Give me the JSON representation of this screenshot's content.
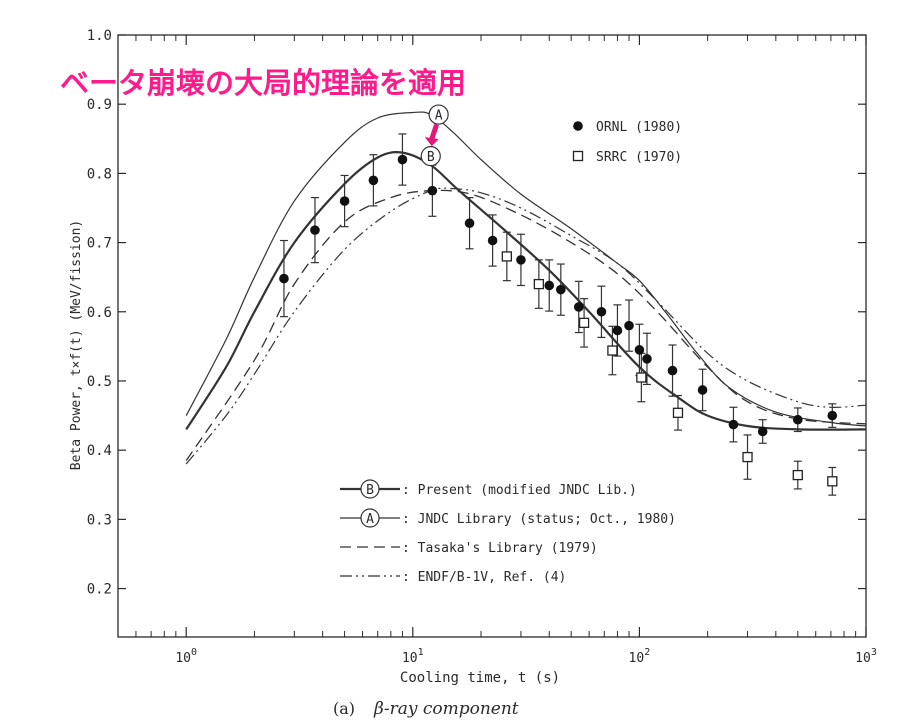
{
  "chart_data": {
    "type": "line",
    "annotation": "ベータ崩壊の大局的理論を適用",
    "ylabel": "Beta Power, t×f(t)  (MeV/fission)",
    "xlabel": "Cooling time, t (s)",
    "caption_label": "(a)",
    "caption_text": "β-ray component",
    "xscale": "log",
    "xlim": [
      0.5,
      1000
    ],
    "ylim": [
      0.13,
      1.0
    ],
    "x_ticks": [
      {
        "v": 1,
        "base": "10",
        "exp": "0"
      },
      {
        "v": 10,
        "base": "10",
        "exp": "1"
      },
      {
        "v": 100,
        "base": "10",
        "exp": "2"
      },
      {
        "v": 1000,
        "base": "10",
        "exp": "3"
      }
    ],
    "y_ticks": [
      {
        "v": 0.2,
        "label": "0.2"
      },
      {
        "v": 0.3,
        "label": "0.3"
      },
      {
        "v": 0.4,
        "label": "0.4"
      },
      {
        "v": 0.5,
        "label": "0.5"
      },
      {
        "v": 0.6,
        "label": "0.6"
      },
      {
        "v": 0.7,
        "label": "0.7"
      },
      {
        "v": 0.8,
        "label": "0.8"
      },
      {
        "v": 0.9,
        "label": "0.9"
      },
      {
        "v": 1.0,
        "label": "1.0"
      }
    ],
    "curves": [
      {
        "marker": "B",
        "label": ": Present (modified JNDC Lib.)",
        "style": "thick",
        "x": [
          1,
          1.5,
          2,
          3,
          5,
          7,
          9,
          12,
          16,
          25,
          40,
          60,
          100,
          150,
          200,
          300,
          500,
          1000
        ],
        "y": [
          0.43,
          0.52,
          0.6,
          0.7,
          0.785,
          0.823,
          0.83,
          0.812,
          0.775,
          0.72,
          0.66,
          0.6,
          0.52,
          0.475,
          0.45,
          0.435,
          0.43,
          0.43
        ]
      },
      {
        "marker": "A",
        "label": ": JNDC Library (status; Oct., 1980)",
        "style": "thin",
        "x": [
          1,
          1.5,
          2,
          3,
          5,
          7,
          10,
          12,
          15,
          20,
          30,
          50,
          80,
          100,
          130,
          180,
          250,
          400,
          700,
          1000
        ],
        "y": [
          0.45,
          0.56,
          0.65,
          0.76,
          0.845,
          0.88,
          0.888,
          0.885,
          0.86,
          0.82,
          0.77,
          0.72,
          0.67,
          0.645,
          0.6,
          0.54,
          0.49,
          0.455,
          0.44,
          0.435
        ]
      },
      {
        "marker": "",
        "label": ": Tasaka's Library (1979)",
        "style": "dash",
        "x": [
          1,
          2,
          3,
          5,
          8,
          12,
          18,
          30,
          50,
          80,
          120,
          200,
          300,
          500,
          1000
        ],
        "y": [
          0.385,
          0.53,
          0.64,
          0.73,
          0.765,
          0.775,
          0.77,
          0.74,
          0.7,
          0.655,
          0.6,
          0.52,
          0.47,
          0.445,
          0.438
        ]
      },
      {
        "marker": "",
        "label": ": ENDF/B-1V, Ref. (4)",
        "style": "dashdot",
        "x": [
          1,
          1.5,
          2,
          3,
          5,
          8,
          12,
          15,
          20,
          30,
          50,
          80,
          120,
          200,
          300,
          500,
          700,
          1000
        ],
        "y": [
          0.38,
          0.45,
          0.51,
          0.6,
          0.69,
          0.745,
          0.775,
          0.778,
          0.772,
          0.75,
          0.71,
          0.67,
          0.615,
          0.54,
          0.5,
          0.47,
          0.462,
          0.465
        ]
      }
    ],
    "series": [
      {
        "name": "ORNL (1980)",
        "marker": "filled-circle",
        "points": [
          {
            "x": 2.7,
            "y": 0.648,
            "err": 0.055
          },
          {
            "x": 3.7,
            "y": 0.718,
            "err": 0.047
          },
          {
            "x": 5,
            "y": 0.76,
            "err": 0.037
          },
          {
            "x": 6.7,
            "y": 0.79,
            "err": 0.037
          },
          {
            "x": 9,
            "y": 0.82,
            "err": 0.037
          },
          {
            "x": 12.2,
            "y": 0.775,
            "err": 0.037
          },
          {
            "x": 17.8,
            "y": 0.728,
            "err": 0.037
          },
          {
            "x": 22.5,
            "y": 0.703,
            "err": 0.037
          },
          {
            "x": 30,
            "y": 0.675,
            "err": 0.037
          },
          {
            "x": 40,
            "y": 0.638,
            "err": 0.037
          },
          {
            "x": 45,
            "y": 0.632,
            "err": 0.037
          },
          {
            "x": 54,
            "y": 0.607,
            "err": 0.037
          },
          {
            "x": 68,
            "y": 0.6,
            "err": 0.037
          },
          {
            "x": 80,
            "y": 0.573,
            "err": 0.037
          },
          {
            "x": 90,
            "y": 0.58,
            "err": 0.037
          },
          {
            "x": 100,
            "y": 0.545,
            "err": 0.037
          },
          {
            "x": 108,
            "y": 0.532,
            "err": 0.037
          },
          {
            "x": 140,
            "y": 0.515,
            "err": 0.037
          },
          {
            "x": 190,
            "y": 0.487,
            "err": 0.03
          },
          {
            "x": 260,
            "y": 0.437,
            "err": 0.025
          },
          {
            "x": 350,
            "y": 0.427,
            "err": 0.017
          },
          {
            "x": 500,
            "y": 0.444,
            "err": 0.017
          },
          {
            "x": 710,
            "y": 0.45,
            "err": 0.017
          }
        ]
      },
      {
        "name": "SRRC (1970)",
        "marker": "open-square",
        "points": [
          {
            "x": 26,
            "y": 0.68,
            "err": 0.035
          },
          {
            "x": 36,
            "y": 0.64,
            "err": 0.035
          },
          {
            "x": 57,
            "y": 0.584,
            "err": 0.035
          },
          {
            "x": 76,
            "y": 0.544,
            "err": 0.035
          },
          {
            "x": 102,
            "y": 0.505,
            "err": 0.035
          },
          {
            "x": 148,
            "y": 0.454,
            "err": 0.025
          },
          {
            "x": 300,
            "y": 0.39,
            "err": 0.032
          },
          {
            "x": 500,
            "y": 0.364,
            "err": 0.02
          },
          {
            "x": 710,
            "y": 0.355,
            "err": 0.02
          }
        ]
      }
    ],
    "callouts": [
      {
        "letter": "A",
        "x": 13,
        "y": 0.885
      },
      {
        "letter": "B",
        "x": 12,
        "y": 0.825
      }
    ],
    "colors": {
      "axis": "#2a2a2a",
      "curve": "#333333",
      "annotation": "#ff1a8c",
      "arrow": "#e0197a"
    }
  }
}
